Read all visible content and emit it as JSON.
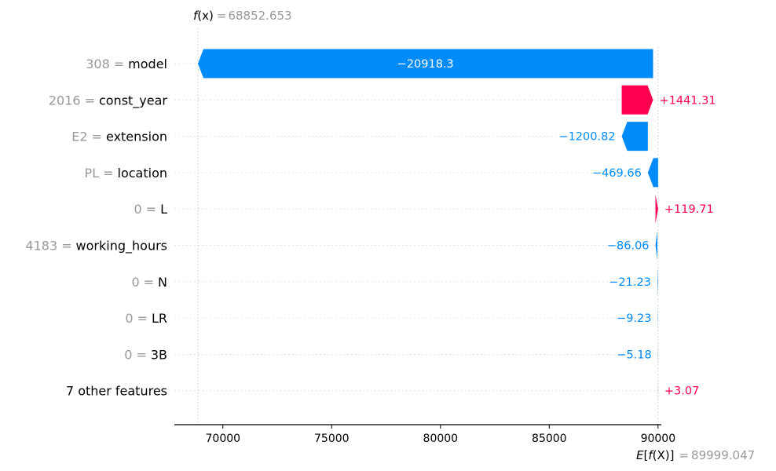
{
  "chart_data": {
    "type": "waterfall",
    "fx": {
      "label_f": "f",
      "label_x": "(x)",
      "eq": "=",
      "value": "68852.653",
      "numeric": 68852.653
    },
    "efx": {
      "label_e": "E",
      "label_bracket_open": "[",
      "label_f": "f",
      "label_x": "(X)",
      "label_bracket_close": "]",
      "eq": "=",
      "value": "89999.047",
      "numeric": 89999.047
    },
    "xlim": [
      67770,
      90150
    ],
    "ticks": [
      {
        "value": 70000,
        "label": "70000"
      },
      {
        "value": 75000,
        "label": "75000"
      },
      {
        "value": 80000,
        "label": "80000"
      },
      {
        "value": 85000,
        "label": "85000"
      },
      {
        "value": 90000,
        "label": "90000"
      }
    ],
    "features": [
      {
        "value": "308",
        "eq": "=",
        "name": "model",
        "contribution": -20918.3,
        "label": "−20918.3",
        "label_inside": true
      },
      {
        "value": "2016",
        "eq": "=",
        "name": "const_year",
        "contribution": 1441.31,
        "label": "+1441.31",
        "label_inside": false
      },
      {
        "value": "E2",
        "eq": "=",
        "name": "extension",
        "contribution": -1200.82,
        "label": "−1200.82",
        "label_inside": false
      },
      {
        "value": "PL",
        "eq": "=",
        "name": "location",
        "contribution": -469.66,
        "label": "−469.66",
        "label_inside": false
      },
      {
        "value": "0",
        "eq": "=",
        "name": "L",
        "contribution": 119.71,
        "label": "+119.71",
        "label_inside": false
      },
      {
        "value": "4183",
        "eq": "=",
        "name": "working_hours",
        "contribution": -86.06,
        "label": "−86.06",
        "label_inside": false
      },
      {
        "value": "0",
        "eq": "=",
        "name": "N",
        "contribution": -21.23,
        "label": "−21.23",
        "label_inside": false
      },
      {
        "value": "0",
        "eq": "=",
        "name": "LR",
        "contribution": -9.23,
        "label": "−9.23",
        "label_inside": false
      },
      {
        "value": "0",
        "eq": "=",
        "name": "3B",
        "contribution": -5.18,
        "label": "−5.18",
        "label_inside": false
      },
      {
        "value": "",
        "eq": "",
        "name": "7 other features",
        "contribution": 3.07,
        "label": "+3.07",
        "label_inside": false
      }
    ],
    "colors": {
      "positive": "#ff0051",
      "negative": "#008bfb",
      "value_text": "#999999",
      "name_text": "#000000",
      "grid": "#cccccc"
    },
    "grid": true,
    "legend": "none"
  }
}
